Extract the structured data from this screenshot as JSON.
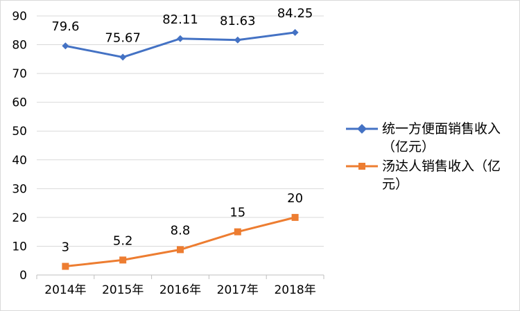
{
  "chart_data": {
    "type": "line",
    "categories": [
      "2014年",
      "2015年",
      "2016年",
      "2017年",
      "2018年"
    ],
    "ylim": [
      0,
      90
    ],
    "yticks": [
      0,
      10,
      20,
      30,
      40,
      50,
      60,
      70,
      80,
      90
    ],
    "grid": true,
    "legend_position": "right",
    "series": [
      {
        "name": "统一方便面销售收入（亿元）",
        "values": [
          79.6,
          75.67,
          82.11,
          81.63,
          84.25
        ],
        "labels": [
          "79.6",
          "75.67",
          "82.11",
          "81.63",
          "84.25"
        ],
        "color": "#4472c4",
        "marker": "diamond"
      },
      {
        "name": "汤达人销售收入（亿元）",
        "values": [
          3,
          5.2,
          8.8,
          15,
          20
        ],
        "labels": [
          "3",
          "5.2",
          "8.8",
          "15",
          "20"
        ],
        "color": "#ed7d31",
        "marker": "square"
      }
    ]
  }
}
